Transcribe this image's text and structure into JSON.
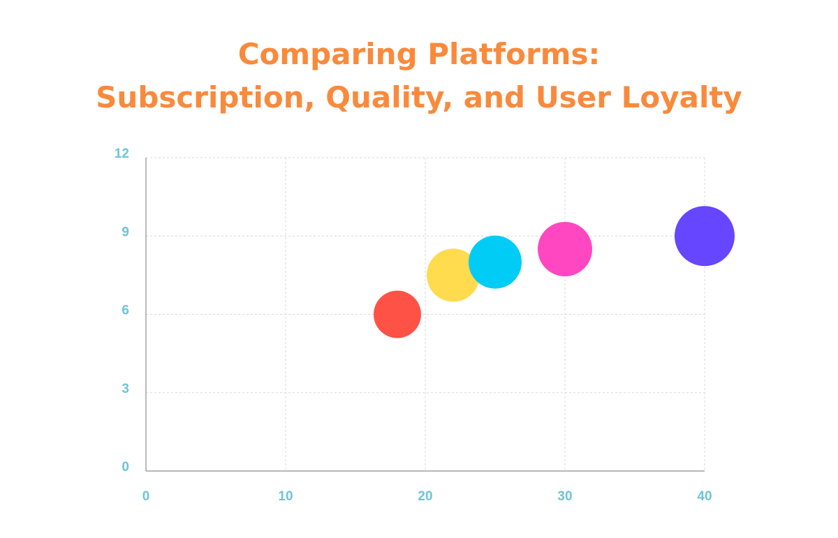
{
  "title": {
    "line1": "Comparing Platforms:",
    "line2": "Subscription, Quality, and User Loyalty"
  },
  "chart_data": {
    "type": "scatter",
    "title": "Comparing Platforms: Subscription, Quality, and User Loyalty",
    "xlabel": "",
    "ylabel": "",
    "xlim": [
      0,
      40
    ],
    "ylim": [
      0,
      12
    ],
    "x_ticks": [
      "0",
      "10",
      "20",
      "30",
      "40"
    ],
    "y_ticks": [
      "0",
      "3",
      "6",
      "9",
      "12"
    ],
    "grid": true,
    "legend": "none",
    "points": [
      {
        "x": 18,
        "y": 6.0,
        "size": 34,
        "color": "#FF5247"
      },
      {
        "x": 22,
        "y": 7.5,
        "size": 38,
        "color": "#FFDB4D"
      },
      {
        "x": 25,
        "y": 8.0,
        "size": 38,
        "color": "#00CCF5"
      },
      {
        "x": 30,
        "y": 8.5,
        "size": 39,
        "color": "#FF47C2"
      },
      {
        "x": 40,
        "y": 9.0,
        "size": 43,
        "color": "#6647FF"
      }
    ]
  }
}
